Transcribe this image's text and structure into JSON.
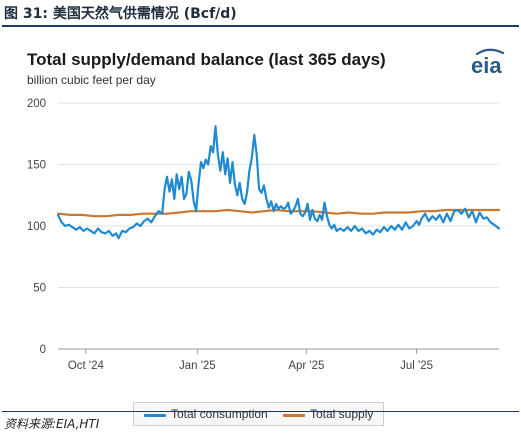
{
  "figure": {
    "title": "图 31:  美国天然气供需情况 (Bcf/d)",
    "source": "资料来源:EIA,HTI"
  },
  "logo": {
    "text": "eia",
    "accent_color": "#2a5a87"
  },
  "chart_data": {
    "type": "line",
    "title": "Total supply/demand balance (last 365 days)",
    "subtitle": "billion cubic feet per day",
    "ylim": [
      0,
      200
    ],
    "yticks": [
      0,
      50,
      100,
      150,
      200
    ],
    "xlim": [
      0,
      364
    ],
    "xticks": [
      {
        "label": "Oct '24",
        "day": 23
      },
      {
        "label": "Jan '25",
        "day": 115
      },
      {
        "label": "Apr '25",
        "day": 205
      },
      {
        "label": "Jul '25",
        "day": 296
      }
    ],
    "grid": "horizontal",
    "legend_position": "bottom",
    "series": [
      {
        "name": "Total consumption",
        "color": "#1f8ad2",
        "points": [
          [
            0,
            109
          ],
          [
            3,
            103
          ],
          [
            6,
            100
          ],
          [
            9,
            101
          ],
          [
            12,
            99
          ],
          [
            15,
            97
          ],
          [
            18,
            99
          ],
          [
            21,
            96
          ],
          [
            24,
            98
          ],
          [
            27,
            96
          ],
          [
            30,
            94
          ],
          [
            33,
            98
          ],
          [
            36,
            95
          ],
          [
            39,
            94
          ],
          [
            42,
            96
          ],
          [
            45,
            92
          ],
          [
            48,
            94
          ],
          [
            50,
            90
          ],
          [
            53,
            96
          ],
          [
            56,
            95
          ],
          [
            59,
            98
          ],
          [
            62,
            99
          ],
          [
            65,
            102
          ],
          [
            68,
            100
          ],
          [
            71,
            104
          ],
          [
            74,
            106
          ],
          [
            77,
            103
          ],
          [
            80,
            108
          ],
          [
            83,
            112
          ],
          [
            86,
            110
          ],
          [
            88,
            130
          ],
          [
            90,
            140
          ],
          [
            92,
            128
          ],
          [
            94,
            138
          ],
          [
            96,
            122
          ],
          [
            98,
            142
          ],
          [
            100,
            130
          ],
          [
            102,
            140
          ],
          [
            104,
            122
          ],
          [
            106,
            126
          ],
          [
            108,
            144
          ],
          [
            110,
            137
          ],
          [
            112,
            120
          ],
          [
            114,
            112
          ],
          [
            116,
            134
          ],
          [
            118,
            152
          ],
          [
            120,
            147
          ],
          [
            122,
            154
          ],
          [
            124,
            150
          ],
          [
            126,
            165
          ],
          [
            128,
            160
          ],
          [
            130,
            181
          ],
          [
            132,
            158
          ],
          [
            134,
            145
          ],
          [
            136,
            160
          ],
          [
            138,
            142
          ],
          [
            140,
            155
          ],
          [
            142,
            135
          ],
          [
            144,
            152
          ],
          [
            146,
            134
          ],
          [
            148,
            125
          ],
          [
            150,
            135
          ],
          [
            152,
            122
          ],
          [
            154,
            118
          ],
          [
            156,
            127
          ],
          [
            158,
            145
          ],
          [
            160,
            155
          ],
          [
            162,
            174
          ],
          [
            164,
            158
          ],
          [
            166,
            130
          ],
          [
            168,
            127
          ],
          [
            170,
            133
          ],
          [
            172,
            122
          ],
          [
            174,
            115
          ],
          [
            176,
            120
          ],
          [
            178,
            112
          ],
          [
            180,
            118
          ],
          [
            182,
            114
          ],
          [
            184,
            116
          ],
          [
            186,
            114
          ],
          [
            188,
            115
          ],
          [
            190,
            119
          ],
          [
            192,
            110
          ],
          [
            194,
            112
          ],
          [
            196,
            116
          ],
          [
            198,
            122
          ],
          [
            200,
            110
          ],
          [
            202,
            108
          ],
          [
            204,
            111
          ],
          [
            206,
            118
          ],
          [
            208,
            105
          ],
          [
            210,
            113
          ],
          [
            212,
            106
          ],
          [
            214,
            104
          ],
          [
            216,
            109
          ],
          [
            218,
            105
          ],
          [
            220,
            119
          ],
          [
            222,
            108
          ],
          [
            224,
            101
          ],
          [
            226,
            98
          ],
          [
            228,
            101
          ],
          [
            230,
            96
          ],
          [
            233,
            98
          ],
          [
            236,
            96
          ],
          [
            239,
            99
          ],
          [
            242,
            96
          ],
          [
            245,
            100
          ],
          [
            248,
            96
          ],
          [
            251,
            98
          ],
          [
            254,
            94
          ],
          [
            257,
            96
          ],
          [
            260,
            93
          ],
          [
            263,
            97
          ],
          [
            266,
            95
          ],
          [
            269,
            99
          ],
          [
            272,
            96
          ],
          [
            275,
            100
          ],
          [
            278,
            97
          ],
          [
            281,
            101
          ],
          [
            284,
            97
          ],
          [
            287,
            103
          ],
          [
            290,
            98
          ],
          [
            293,
            100
          ],
          [
            296,
            104
          ],
          [
            298,
            101
          ],
          [
            300,
            106
          ],
          [
            303,
            110
          ],
          [
            306,
            104
          ],
          [
            309,
            108
          ],
          [
            312,
            105
          ],
          [
            315,
            109
          ],
          [
            318,
            103
          ],
          [
            321,
            110
          ],
          [
            324,
            104
          ],
          [
            327,
            112
          ],
          [
            330,
            113
          ],
          [
            333,
            110
          ],
          [
            336,
            114
          ],
          [
            339,
            107
          ],
          [
            342,
            112
          ],
          [
            345,
            103
          ],
          [
            348,
            111
          ],
          [
            351,
            106
          ],
          [
            354,
            107
          ],
          [
            357,
            103
          ],
          [
            360,
            101
          ],
          [
            364,
            98
          ]
        ]
      },
      {
        "name": "Total supply",
        "color": "#c9782f",
        "points": [
          [
            0,
            110
          ],
          [
            10,
            109
          ],
          [
            20,
            109
          ],
          [
            30,
            108
          ],
          [
            40,
            108
          ],
          [
            50,
            109
          ],
          [
            60,
            109
          ],
          [
            70,
            110
          ],
          [
            80,
            110
          ],
          [
            90,
            110
          ],
          [
            100,
            111
          ],
          [
            110,
            112
          ],
          [
            120,
            112
          ],
          [
            130,
            112
          ],
          [
            140,
            113
          ],
          [
            150,
            112
          ],
          [
            160,
            111
          ],
          [
            170,
            112
          ],
          [
            180,
            113
          ],
          [
            190,
            112
          ],
          [
            200,
            112
          ],
          [
            210,
            112
          ],
          [
            220,
            111
          ],
          [
            230,
            110
          ],
          [
            240,
            111
          ],
          [
            250,
            110
          ],
          [
            260,
            110
          ],
          [
            270,
            111
          ],
          [
            280,
            111
          ],
          [
            290,
            111
          ],
          [
            300,
            112
          ],
          [
            310,
            112
          ],
          [
            320,
            113
          ],
          [
            330,
            113
          ],
          [
            340,
            113
          ],
          [
            350,
            113
          ],
          [
            364,
            113
          ]
        ]
      }
    ]
  }
}
